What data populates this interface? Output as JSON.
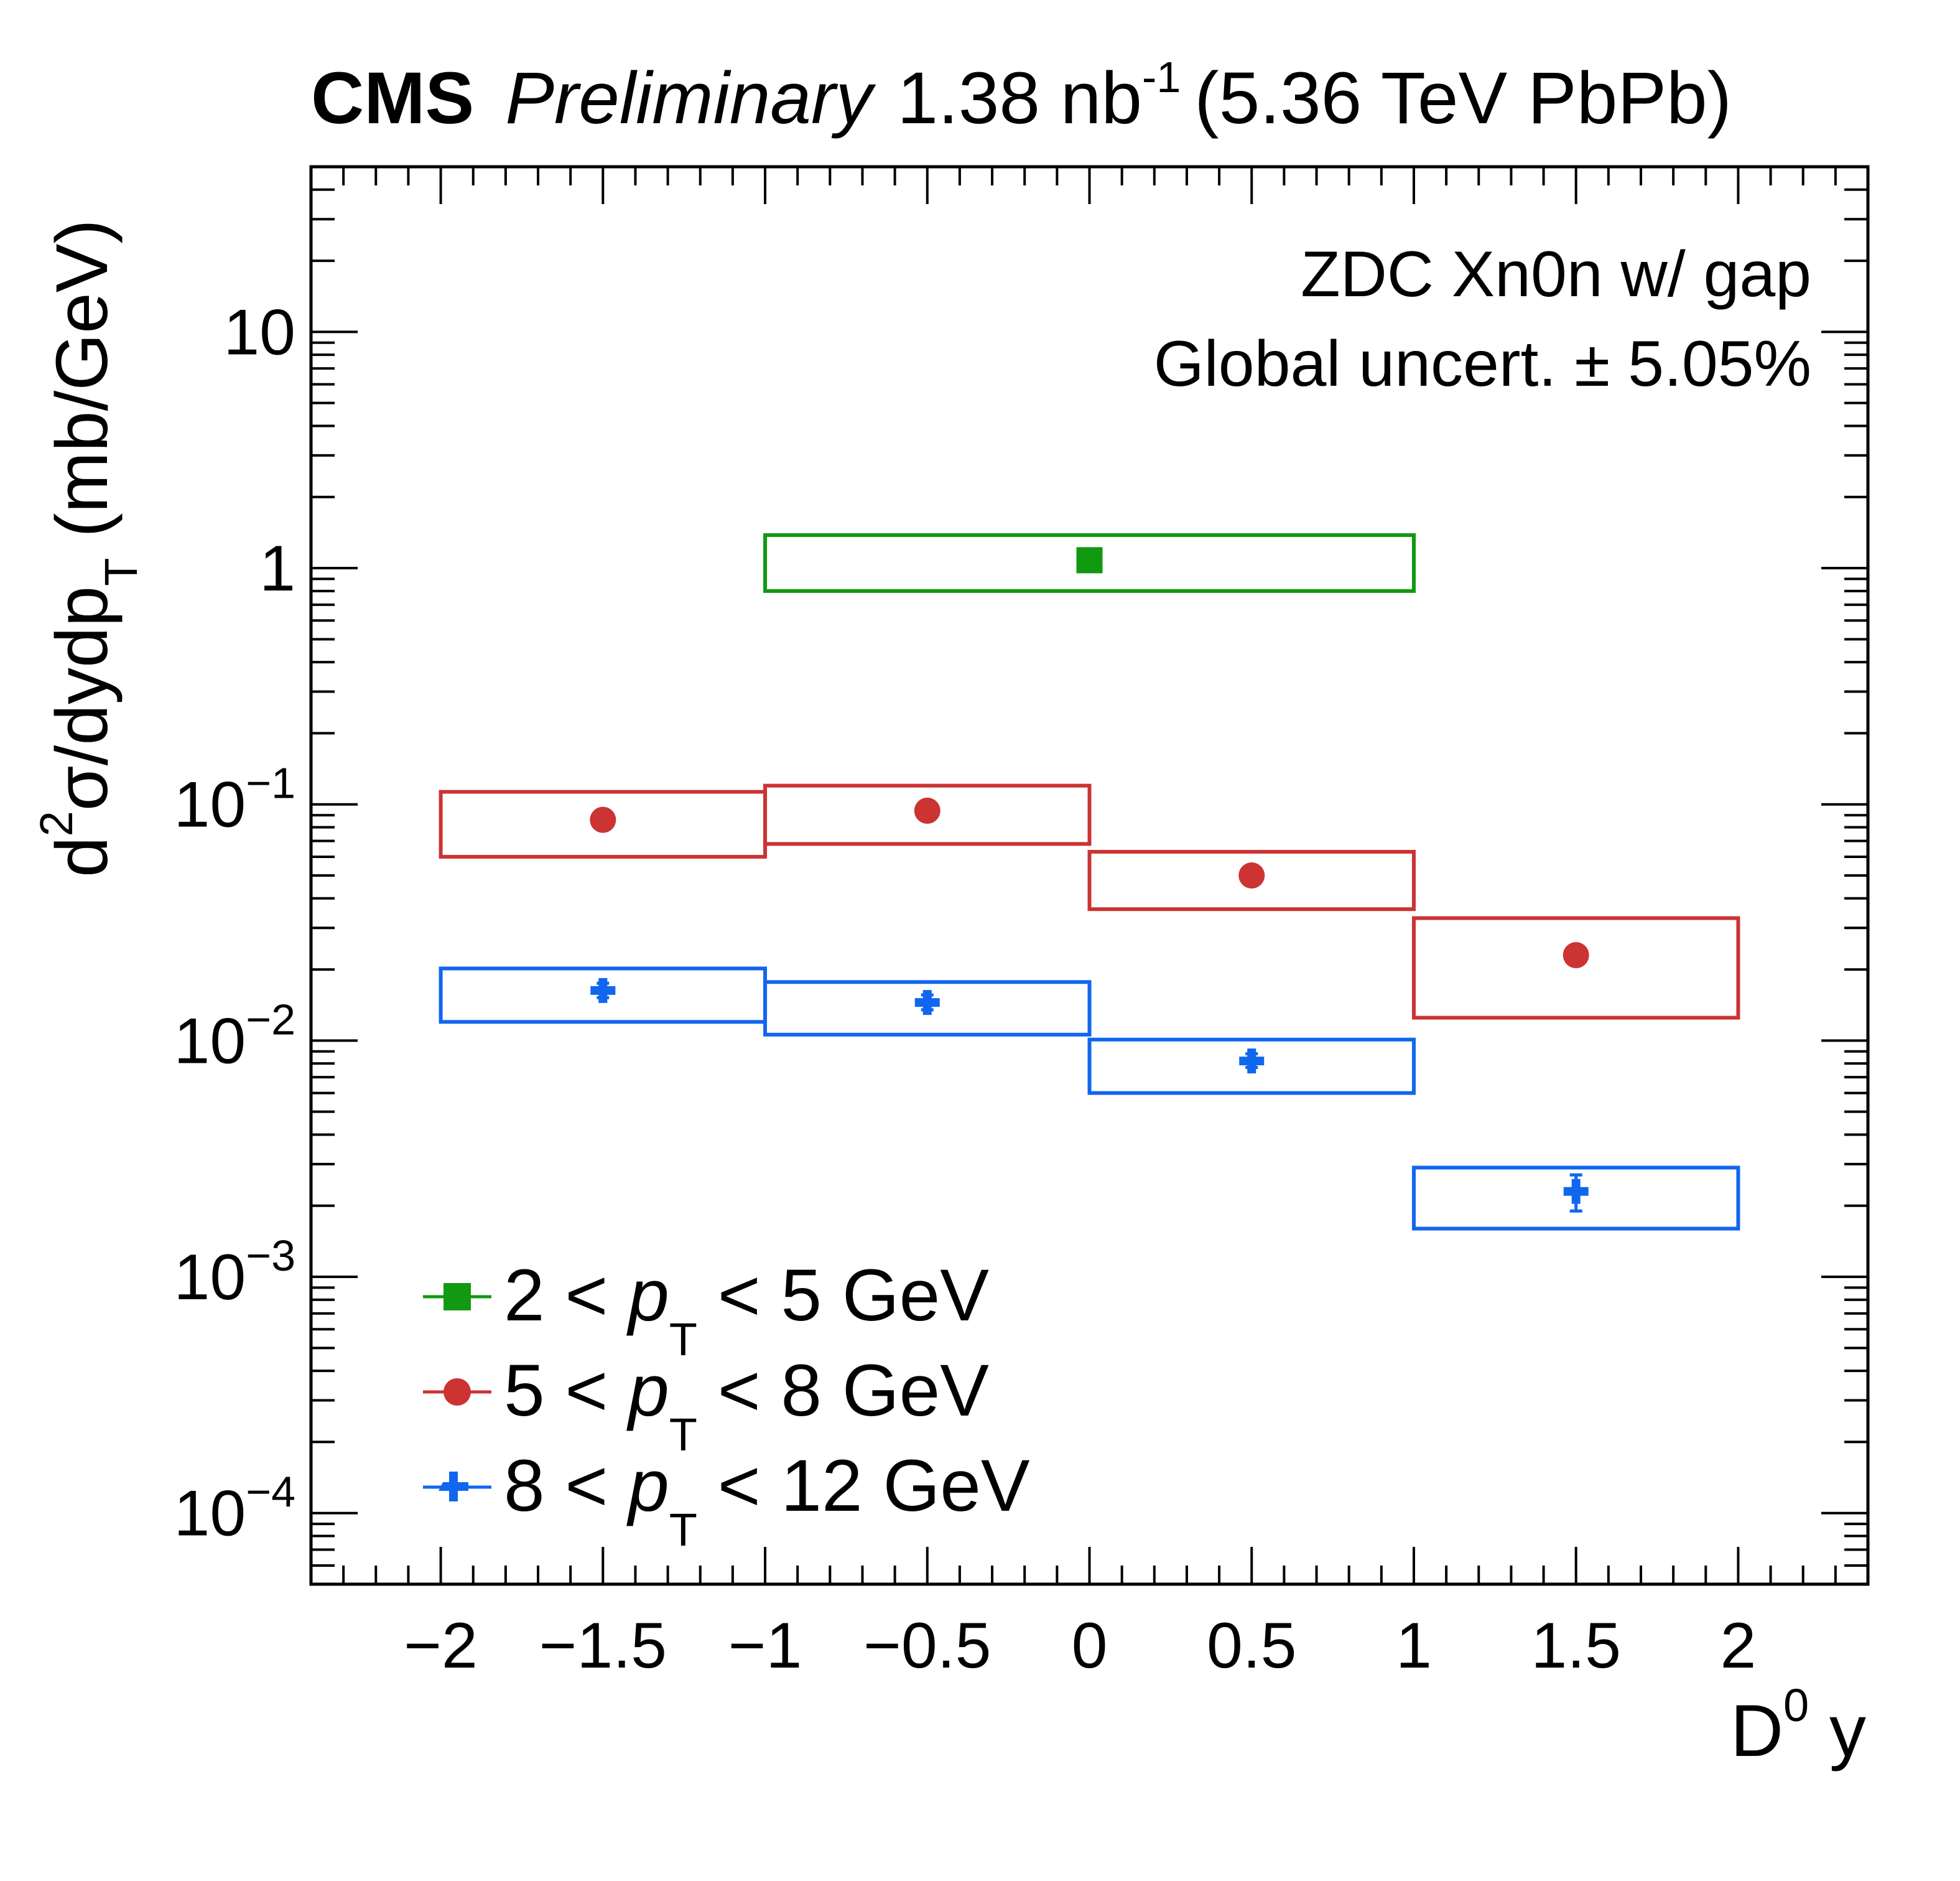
{
  "chart_data": {
    "type": "scatter",
    "header": {
      "experiment": "CMS",
      "status": "Preliminary",
      "lumi_value": "1.38 nb",
      "lumi_exponent": "-1",
      "energy": "(5.36 TeV PbPb)"
    },
    "annotations": [
      "ZDC Xn0n w/ gap",
      "Global uncert. ± 5.05%"
    ],
    "xlabel": {
      "main": "D",
      "sup": "0",
      "rest": " y"
    },
    "ylabel": {
      "pre": "d",
      "sup": "2",
      "mid": "σ/dydp",
      "sub": "T",
      "post": " (mb/GeV)"
    },
    "xlim": [
      -2.4,
      2.4
    ],
    "ylim": [
      5e-05,
      50
    ],
    "yscale": "log",
    "x_ticks": [
      -2,
      -1.5,
      -1,
      -0.5,
      0,
      0.5,
      1,
      1.5,
      2
    ],
    "x_tick_labels": [
      "−2",
      "−1.5",
      "−1",
      "−0.5",
      "0",
      "0.5",
      "1",
      "1.5",
      "2"
    ],
    "y_tick_labels": [
      {
        "value": 10,
        "base": "10",
        "exp": ""
      },
      {
        "value": 1,
        "base": "1",
        "exp": ""
      },
      {
        "value": 0.1,
        "base": "10",
        "exp": "−1"
      },
      {
        "value": 0.01,
        "base": "10",
        "exp": "−2"
      },
      {
        "value": 0.001,
        "base": "10",
        "exp": "−3"
      },
      {
        "value": 0.0001,
        "base": "10",
        "exp": "−4"
      }
    ],
    "legend_position": "bottom-left",
    "series": [
      {
        "name": "2 < pT < 5 GeV",
        "legend": {
          "left": "2 < ",
          "var": "p",
          "sub": "T",
          "right": " < 5 GeV"
        },
        "color": "#119911",
        "marker": "square",
        "points": [
          {
            "x": 0,
            "y": 1.08,
            "ylo": 1.08,
            "yhi": 1.08,
            "xlo": -1,
            "xhi": 1,
            "box_lo": 0.8,
            "box_hi": 1.38
          }
        ]
      },
      {
        "name": "5 < pT < 8 GeV",
        "legend": {
          "left": "5 < ",
          "var": "p",
          "sub": "T",
          "right": " < 8 GeV"
        },
        "color": "#cc3333",
        "marker": "circle",
        "points": [
          {
            "x": -1.5,
            "y": 0.086,
            "ylo": 0.086,
            "yhi": 0.086,
            "xlo": -2,
            "xhi": -1,
            "box_lo": 0.06,
            "box_hi": 0.113
          },
          {
            "x": -0.5,
            "y": 0.094,
            "ylo": 0.094,
            "yhi": 0.094,
            "xlo": -1,
            "xhi": 0,
            "box_lo": 0.068,
            "box_hi": 0.12
          },
          {
            "x": 0.5,
            "y": 0.05,
            "ylo": 0.05,
            "yhi": 0.05,
            "xlo": 0,
            "xhi": 1,
            "box_lo": 0.036,
            "box_hi": 0.063
          },
          {
            "x": 1.5,
            "y": 0.023,
            "ylo": 0.023,
            "yhi": 0.023,
            "xlo": 1,
            "xhi": 2,
            "box_lo": 0.0125,
            "box_hi": 0.033
          }
        ]
      },
      {
        "name": "8 < pT < 12 GeV",
        "legend": {
          "left": "8 < ",
          "var": "p",
          "sub": "T",
          "right": " < 12 GeV"
        },
        "color": "#1166ee",
        "marker": "cross",
        "points": [
          {
            "x": -1.5,
            "y": 0.0163,
            "ylo": 0.0152,
            "yhi": 0.0175,
            "xlo": -2,
            "xhi": -1,
            "box_lo": 0.012,
            "box_hi": 0.0202
          },
          {
            "x": -0.5,
            "y": 0.0145,
            "ylo": 0.0135,
            "yhi": 0.0156,
            "xlo": -1,
            "xhi": 0,
            "box_lo": 0.0106,
            "box_hi": 0.0177
          },
          {
            "x": 0.5,
            "y": 0.0082,
            "ylo": 0.0077,
            "yhi": 0.0088,
            "xlo": 0,
            "xhi": 1,
            "box_lo": 0.006,
            "box_hi": 0.0101
          },
          {
            "x": 1.5,
            "y": 0.0023,
            "ylo": 0.0019,
            "yhi": 0.0027,
            "xlo": 1,
            "xhi": 2,
            "box_lo": 0.0016,
            "box_hi": 0.0029
          }
        ]
      }
    ]
  }
}
